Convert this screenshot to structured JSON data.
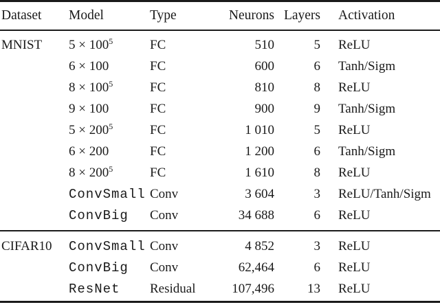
{
  "table": {
    "header": {
      "dataset": "Dataset",
      "model": "Model",
      "type": "Type",
      "neurons": "Neurons",
      "layers": "Layers",
      "activation": "Activation"
    },
    "rows": [
      {
        "dataset": "MNIST",
        "model": "5 × 100",
        "sup": "5",
        "type": "FC",
        "neurons": "510",
        "layers": "5",
        "activation": "ReLU"
      },
      {
        "dataset": "",
        "model": "6 × 100",
        "sup": "",
        "type": "FC",
        "neurons": "600",
        "layers": "6",
        "activation": "Tanh/Sigm"
      },
      {
        "dataset": "",
        "model": "8 × 100",
        "sup": "5",
        "type": "FC",
        "neurons": "810",
        "layers": "8",
        "activation": "ReLU"
      },
      {
        "dataset": "",
        "model": "9 × 100",
        "sup": "",
        "type": "FC",
        "neurons": "900",
        "layers": "9",
        "activation": "Tanh/Sigm"
      },
      {
        "dataset": "",
        "model": "5 × 200",
        "sup": "5",
        "type": "FC",
        "neurons": "1 010",
        "layers": "5",
        "activation": "ReLU"
      },
      {
        "dataset": "",
        "model": "6 × 200",
        "sup": "",
        "type": "FC",
        "neurons": "1 200",
        "layers": "6",
        "activation": "Tanh/Sigm"
      },
      {
        "dataset": "",
        "model": "8 × 200",
        "sup": "5",
        "type": "FC",
        "neurons": "1 610",
        "layers": "8",
        "activation": "ReLU"
      },
      {
        "dataset": "",
        "model": "ConvSmall",
        "sup": "",
        "type": "Conv",
        "neurons": "3 604",
        "layers": "3",
        "activation": "ReLU/Tanh/Sigm"
      },
      {
        "dataset": "",
        "model": "ConvBig",
        "sup": "",
        "type": "Conv",
        "neurons": "34 688",
        "layers": "6",
        "activation": "ReLU"
      },
      {
        "dataset": "CIFAR10",
        "model": "ConvSmall",
        "sup": "",
        "type": "Conv",
        "neurons": "4 852",
        "layers": "3",
        "activation": "ReLU"
      },
      {
        "dataset": "",
        "model": "ConvBig",
        "sup": "",
        "type": "Conv",
        "neurons": "62,464",
        "layers": "6",
        "activation": "ReLU"
      },
      {
        "dataset": "",
        "model": "ResNet",
        "sup": "",
        "type": "Residual",
        "neurons": "107,496",
        "layers": "13",
        "activation": "ReLU"
      }
    ]
  }
}
